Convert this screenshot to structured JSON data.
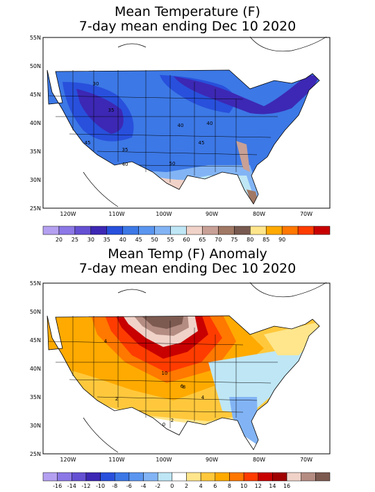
{
  "maps": [
    {
      "title_line1": "Mean Temperature (F)",
      "title_line2": "7-day mean ending Dec 10 2020",
      "lat_labels": [
        "55N",
        "50N",
        "45N",
        "40N",
        "35N",
        "30N",
        "25N"
      ],
      "lon_labels": [
        "120W",
        "110W",
        "100W",
        "90W",
        "80W",
        "70W"
      ],
      "contour_labels": [
        "30",
        "35",
        "40",
        "45",
        "40",
        "45",
        "50",
        "35",
        "40"
      ],
      "legend_labels": [
        "20",
        "25",
        "30",
        "35",
        "40",
        "45",
        "50",
        "55",
        "60",
        "65",
        "70",
        "75",
        "80",
        "85",
        "90"
      ],
      "legend_colors": [
        "#b4a0f0",
        "#8c78e6",
        "#6450d2",
        "#3c28b4",
        "#2850dc",
        "#3c78e6",
        "#5a96f0",
        "#82b4f5",
        "#bee6f5",
        "#f0d2c8",
        "#c8a096",
        "#a07864",
        "#785a50",
        "#ffe68c",
        "#ffaa00",
        "#ff7800",
        "#ff3c00",
        "#c80000"
      ]
    },
    {
      "title_line1": "Mean Temp (F) Anomaly",
      "title_line2": "7-day mean ending Dec 10 2020",
      "lat_labels": [
        "55N",
        "50N",
        "45N",
        "40N",
        "35N",
        "30N",
        "25N"
      ],
      "lon_labels": [
        "120W",
        "110W",
        "100W",
        "90W",
        "80W",
        "70W"
      ],
      "contour_labels": [
        "4",
        "10",
        "8",
        "6",
        "4",
        "2",
        "2",
        "0"
      ],
      "legend_labels": [
        "-16",
        "-14",
        "-12",
        "-10",
        "-8",
        "-6",
        "-4",
        "-2",
        "0",
        "2",
        "4",
        "6",
        "8",
        "10",
        "12",
        "14",
        "16"
      ],
      "legend_colors": [
        "#b4a0f0",
        "#8c78e6",
        "#6450d2",
        "#3c28b4",
        "#2850dc",
        "#3c78e6",
        "#5a96f0",
        "#82b4f5",
        "#bee6f5",
        "#ffffff",
        "#ffe68c",
        "#ffc83c",
        "#ffaa00",
        "#ff7800",
        "#ff3c00",
        "#c80000",
        "#a00000",
        "#f0d2c8",
        "#b48c82",
        "#7d5a50"
      ]
    }
  ]
}
